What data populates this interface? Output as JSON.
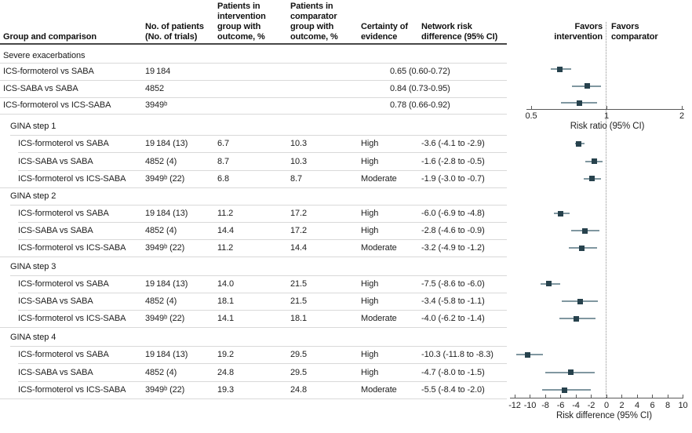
{
  "header": {
    "columns": {
      "group": "Group and comparison",
      "patients": "No. of patients\n(No. of trials)",
      "intervention": "Patients in\nintervention\ngroup with\noutcome, %",
      "comparator": "Patients in\ncomparator\ngroup with\noutcome, %",
      "certainty": "Certainty of\nevidence",
      "estimate": "Network risk\ndifference (95% CI)"
    },
    "favors_intervention": "Favors\nintervention",
    "favors_comparator": "Favors\ncomparator"
  },
  "sections": [
    {
      "label": "Severe exacerbations",
      "type": "risk_ratio",
      "rows": [
        {
          "comparison": "ICS-formoterol vs SABA",
          "patients": "19 184",
          "estimate_text": "0.65 (0.60-0.72)",
          "estimate": 0.65,
          "ci_low": 0.6,
          "ci_high": 0.72
        },
        {
          "comparison": "ICS-SABA vs SABA",
          "patients": "4852",
          "estimate_text": "0.84 (0.73-0.95)",
          "estimate": 0.84,
          "ci_low": 0.73,
          "ci_high": 0.95
        },
        {
          "comparison": "ICS-formoterol vs ICS-SABA",
          "patients": "3949ᵇ",
          "estimate_text": "0.78 (0.66-0.92)",
          "estimate": 0.78,
          "ci_low": 0.66,
          "ci_high": 0.92
        }
      ]
    },
    {
      "label": "GINA step 1",
      "type": "risk_difference",
      "rows": [
        {
          "comparison": "ICS-formoterol vs SABA",
          "patients": "19 184 (13)",
          "intervention_pct": "6.7",
          "comparator_pct": "10.3",
          "certainty": "High",
          "estimate_text": "-3.6 (-4.1 to -2.9)",
          "estimate": -3.6,
          "ci_low": -4.1,
          "ci_high": -2.9
        },
        {
          "comparison": "ICS-SABA vs SABA",
          "patients": "4852 (4)",
          "intervention_pct": "8.7",
          "comparator_pct": "10.3",
          "certainty": "High",
          "estimate_text": "-1.6 (-2.8 to -0.5)",
          "estimate": -1.6,
          "ci_low": -2.8,
          "ci_high": -0.5
        },
        {
          "comparison": "ICS-formoterol vs ICS-SABA",
          "patients": "3949ᵇ (22)",
          "intervention_pct": "6.8",
          "comparator_pct": "8.7",
          "certainty": "Moderate",
          "estimate_text": "-1.9 (-3.0 to -0.7)",
          "estimate": -1.9,
          "ci_low": -3.0,
          "ci_high": -0.7
        }
      ]
    },
    {
      "label": "GINA step 2",
      "type": "risk_difference",
      "rows": [
        {
          "comparison": "ICS-formoterol vs SABA",
          "patients": "19 184 (13)",
          "intervention_pct": "11.2",
          "comparator_pct": "17.2",
          "certainty": "High",
          "estimate_text": "-6.0 (-6.9 to -4.8)",
          "estimate": -6.0,
          "ci_low": -6.9,
          "ci_high": -4.8
        },
        {
          "comparison": "ICS-SABA vs SABA",
          "patients": "4852 (4)",
          "intervention_pct": "14.4",
          "comparator_pct": "17.2",
          "certainty": "High",
          "estimate_text": "-2.8 (-4.6 to -0.9)",
          "estimate": -2.8,
          "ci_low": -4.6,
          "ci_high": -0.9
        },
        {
          "comparison": "ICS-formoterol vs ICS-SABA",
          "patients": "3949ᵇ (22)",
          "intervention_pct": "11.2",
          "comparator_pct": "14.4",
          "certainty": "Moderate",
          "estimate_text": "-3.2 (-4.9 to -1.2)",
          "estimate": -3.2,
          "ci_low": -4.9,
          "ci_high": -1.2
        }
      ]
    },
    {
      "label": "GINA step 3",
      "type": "risk_difference",
      "rows": [
        {
          "comparison": "ICS-formoterol vs SABA",
          "patients": "19 184 (13)",
          "intervention_pct": "14.0",
          "comparator_pct": "21.5",
          "certainty": "High",
          "estimate_text": "-7.5 (-8.6 to -6.0)",
          "estimate": -7.5,
          "ci_low": -8.6,
          "ci_high": -6.0
        },
        {
          "comparison": "ICS-SABA vs SABA",
          "patients": "4852 (4)",
          "intervention_pct": "18.1",
          "comparator_pct": "21.5",
          "certainty": "High",
          "estimate_text": "-3.4 (-5.8 to -1.1)",
          "estimate": -3.4,
          "ci_low": -5.8,
          "ci_high": -1.1
        },
        {
          "comparison": "ICS-formoterol vs ICS-SABA",
          "patients": "3949ᵇ (22)",
          "intervention_pct": "14.1",
          "comparator_pct": "18.1",
          "certainty": "Moderate",
          "estimate_text": "-4.0 (-6.2 to -1.4)",
          "estimate": -4.0,
          "ci_low": -6.2,
          "ci_high": -1.4
        }
      ]
    },
    {
      "label": "GINA step 4",
      "type": "risk_difference",
      "rows": [
        {
          "comparison": "ICS-formoterol vs SABA",
          "patients": "19 184 (13)",
          "intervention_pct": "19.2",
          "comparator_pct": "29.5",
          "certainty": "High",
          "estimate_text": "-10.3 (-11.8 to -8.3)",
          "estimate": -10.3,
          "ci_low": -11.8,
          "ci_high": -8.3
        },
        {
          "comparison": "ICS-SABA vs SABA",
          "patients": "4852 (4)",
          "intervention_pct": "24.8",
          "comparator_pct": "29.5",
          "certainty": "High",
          "estimate_text": "-4.7 (-8.0 to -1.5)",
          "estimate": -4.7,
          "ci_low": -8.0,
          "ci_high": -1.5
        },
        {
          "comparison": "ICS-formoterol vs ICS-SABA",
          "patients": "3949ᵇ (22)",
          "intervention_pct": "19.3",
          "comparator_pct": "24.8",
          "certainty": "Moderate",
          "estimate_text": "-5.5 (-8.4 to -2.0)",
          "estimate": -5.5,
          "ci_low": -8.4,
          "ci_high": -2.0
        }
      ]
    }
  ],
  "rr_axis": {
    "ticks": [
      0.5,
      1,
      2
    ],
    "tick_labels": [
      "0.5",
      "1",
      "2"
    ],
    "label": "Risk ratio (95% CI)",
    "scale": "log",
    "reference_value": 1
  },
  "rd_axis": {
    "ticks": [
      -12,
      -10,
      -8,
      -6,
      -4,
      -2,
      0,
      2,
      4,
      6,
      8,
      10
    ],
    "label": "Risk difference (95% CI)",
    "reference_value": 0
  },
  "colors": {
    "marker": "#27424d",
    "ci_line": "#8097a0",
    "reference_line": "#8f8f8f"
  },
  "chart_data": [
    {
      "type": "scatter",
      "variant": "forest",
      "xlabel": "Risk ratio (95% CI)",
      "xscale": "log",
      "xlim": [
        0.5,
        2
      ],
      "xticks": [
        0.5,
        1,
        2
      ],
      "reference_line": 1,
      "legend_left": "Favors intervention",
      "legend_right": "Favors comparator",
      "group": "Severe exacerbations",
      "points": [
        {
          "label": "ICS-formoterol vs SABA",
          "estimate": 0.65,
          "ci_low": 0.6,
          "ci_high": 0.72
        },
        {
          "label": "ICS-SABA vs SABA",
          "estimate": 0.84,
          "ci_low": 0.73,
          "ci_high": 0.95
        },
        {
          "label": "ICS-formoterol vs ICS-SABA",
          "estimate": 0.78,
          "ci_low": 0.66,
          "ci_high": 0.92
        }
      ]
    },
    {
      "type": "scatter",
      "variant": "forest",
      "xlabel": "Risk difference (95% CI)",
      "xlim": [
        -12,
        10
      ],
      "xticks": [
        -12,
        -10,
        -8,
        -6,
        -4,
        -2,
        0,
        2,
        4,
        6,
        8,
        10
      ],
      "reference_line": 0,
      "legend_left": "Favors intervention",
      "legend_right": "Favors comparator",
      "groups": [
        {
          "group": "GINA step 1",
          "points": [
            {
              "label": "ICS-formoterol vs SABA",
              "estimate": -3.6,
              "ci_low": -4.1,
              "ci_high": -2.9
            },
            {
              "label": "ICS-SABA vs SABA",
              "estimate": -1.6,
              "ci_low": -2.8,
              "ci_high": -0.5
            },
            {
              "label": "ICS-formoterol vs ICS-SABA",
              "estimate": -1.9,
              "ci_low": -3.0,
              "ci_high": -0.7
            }
          ]
        },
        {
          "group": "GINA step 2",
          "points": [
            {
              "label": "ICS-formoterol vs SABA",
              "estimate": -6.0,
              "ci_low": -6.9,
              "ci_high": -4.8
            },
            {
              "label": "ICS-SABA vs SABA",
              "estimate": -2.8,
              "ci_low": -4.6,
              "ci_high": -0.9
            },
            {
              "label": "ICS-formoterol vs ICS-SABA",
              "estimate": -3.2,
              "ci_low": -4.9,
              "ci_high": -1.2
            }
          ]
        },
        {
          "group": "GINA step 3",
          "points": [
            {
              "label": "ICS-formoterol vs SABA",
              "estimate": -7.5,
              "ci_low": -8.6,
              "ci_high": -6.0
            },
            {
              "label": "ICS-SABA vs SABA",
              "estimate": -3.4,
              "ci_low": -5.8,
              "ci_high": -1.1
            },
            {
              "label": "ICS-formoterol vs ICS-SABA",
              "estimate": -4.0,
              "ci_low": -6.2,
              "ci_high": -1.4
            }
          ]
        },
        {
          "group": "GINA step 4",
          "points": [
            {
              "label": "ICS-formoterol vs SABA",
              "estimate": -10.3,
              "ci_low": -11.8,
              "ci_high": -8.3
            },
            {
              "label": "ICS-SABA vs SABA",
              "estimate": -4.7,
              "ci_low": -8.0,
              "ci_high": -1.5
            },
            {
              "label": "ICS-formoterol vs ICS-SABA",
              "estimate": -5.5,
              "ci_low": -8.4,
              "ci_high": -2.0
            }
          ]
        }
      ]
    }
  ]
}
